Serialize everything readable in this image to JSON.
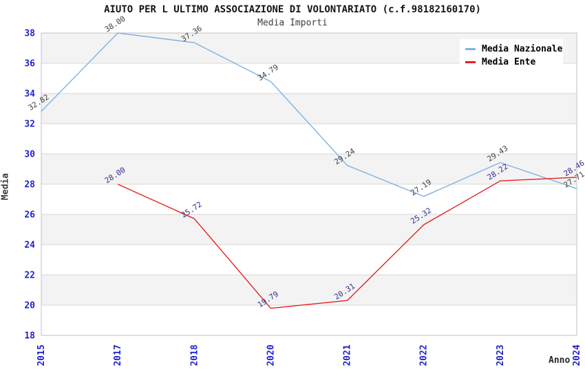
{
  "header": {
    "title": "AIUTO PER L ULTIMO ASSOCIAZIONE DI VOLONTARIATO (c.f.98182160170)",
    "subtitle": "Media Importi"
  },
  "chart_data": {
    "type": "line",
    "title": "AIUTO PER L ULTIMO ASSOCIAZIONE DI VOLONTARIATO (c.f.98182160170)",
    "subtitle": "Media Importi",
    "xlabel": "Anno",
    "ylabel": "Media",
    "categories": [
      "2015",
      "2017",
      "2018",
      "2020",
      "2021",
      "2022",
      "2023",
      "2024"
    ],
    "series": [
      {
        "name": "Media Nazionale",
        "color": "#7db2e4",
        "label_color": "#3f3f3f",
        "values": [
          32.82,
          38.0,
          37.36,
          34.79,
          29.24,
          27.19,
          29.43,
          27.71
        ]
      },
      {
        "name": "Media Ente",
        "color": "#e51f1f",
        "label_color": "#30308f",
        "values": [
          null,
          28.0,
          25.72,
          19.79,
          20.31,
          25.32,
          28.22,
          28.46
        ]
      }
    ],
    "ylim": [
      18,
      38
    ],
    "ytick_step": 2,
    "yticks": [
      18,
      20,
      22,
      24,
      26,
      28,
      30,
      32,
      34,
      36,
      38
    ],
    "grid": true,
    "legend_position": "top-right",
    "band_fill": "#f3f3f3",
    "grid_color": "#d7d7d7",
    "plot_border_color": "#c0c0c0",
    "tick_label_color": "#2222cc",
    "label_rotation_deg": -33
  }
}
